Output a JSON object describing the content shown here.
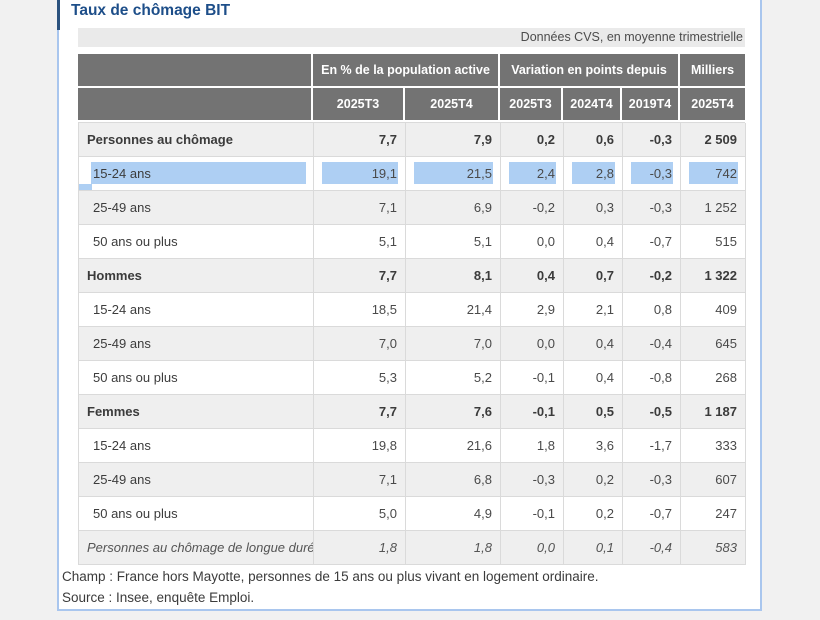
{
  "panel": {
    "title": "Taux de chômage BIT",
    "subtitle": "Données CVS, en moyenne trimestrielle",
    "footer_lines": [
      "Champ : France hors Mayotte, personnes de 15 ans ou plus vivant en logement ordinaire.",
      "Source : Insee, enquête Emploi."
    ]
  },
  "table": {
    "header": {
      "group_pct": "En % de la population active",
      "group_var": "Variation en points depuis",
      "group_thousands": "Milliers",
      "cols": [
        "2025T3",
        "2025T4",
        "2025T3",
        "2024T4",
        "2019T4",
        "2025T4"
      ]
    },
    "rows": [
      {
        "label": "Personnes au chômage",
        "style": "bold",
        "selected": false,
        "values": [
          "7,7",
          "7,9",
          "0,2",
          "0,6",
          "-0,3",
          "2 509"
        ]
      },
      {
        "label": "15-24 ans",
        "style": "indent",
        "selected": true,
        "values": [
          "19,1",
          "21,5",
          "2,4",
          "2,8",
          "-0,3",
          "742"
        ]
      },
      {
        "label": "25-49 ans",
        "style": "indent",
        "selected": false,
        "values": [
          "7,1",
          "6,9",
          "-0,2",
          "0,3",
          "-0,3",
          "1 252"
        ]
      },
      {
        "label": "50 ans ou plus",
        "style": "indent",
        "selected": false,
        "values": [
          "5,1",
          "5,1",
          "0,0",
          "0,4",
          "-0,7",
          "515"
        ]
      },
      {
        "label": "Hommes",
        "style": "bold",
        "selected": false,
        "values": [
          "7,7",
          "8,1",
          "0,4",
          "0,7",
          "-0,2",
          "1 322"
        ]
      },
      {
        "label": "15-24 ans",
        "style": "indent",
        "selected": false,
        "values": [
          "18,5",
          "21,4",
          "2,9",
          "2,1",
          "0,8",
          "409"
        ]
      },
      {
        "label": "25-49 ans",
        "style": "indent",
        "selected": false,
        "values": [
          "7,0",
          "7,0",
          "0,0",
          "0,4",
          "-0,4",
          "645"
        ]
      },
      {
        "label": "50 ans ou plus",
        "style": "indent",
        "selected": false,
        "values": [
          "5,3",
          "5,2",
          "-0,1",
          "0,4",
          "-0,8",
          "268"
        ]
      },
      {
        "label": "Femmes",
        "style": "bold",
        "selected": false,
        "values": [
          "7,7",
          "7,6",
          "-0,1",
          "0,5",
          "-0,5",
          "1 187"
        ]
      },
      {
        "label": "15-24 ans",
        "style": "indent",
        "selected": false,
        "values": [
          "19,8",
          "21,6",
          "1,8",
          "3,6",
          "-1,7",
          "333"
        ]
      },
      {
        "label": "25-49 ans",
        "style": "indent",
        "selected": false,
        "values": [
          "7,1",
          "6,8",
          "-0,3",
          "0,2",
          "-0,3",
          "607"
        ]
      },
      {
        "label": "50 ans ou plus",
        "style": "indent",
        "selected": false,
        "values": [
          "5,0",
          "4,9",
          "-0,1",
          "0,2",
          "-0,7",
          "247"
        ]
      },
      {
        "label": "Personnes au chômage de longue durée",
        "style": "italic",
        "selected": false,
        "values": [
          "1,8",
          "1,8",
          "0,0",
          "0,1",
          "-0,4",
          "583"
        ]
      }
    ]
  },
  "colors": {
    "title_blue": "#1d4e89",
    "panel_border_blue": "#a9c6ee",
    "accent_dark_blue": "#2b527e",
    "header_bg_gray": "#737373",
    "row_stripe_gray": "#efefef",
    "cell_border_gray": "#dadada",
    "selection_highlight_blue": "#aecff3"
  }
}
